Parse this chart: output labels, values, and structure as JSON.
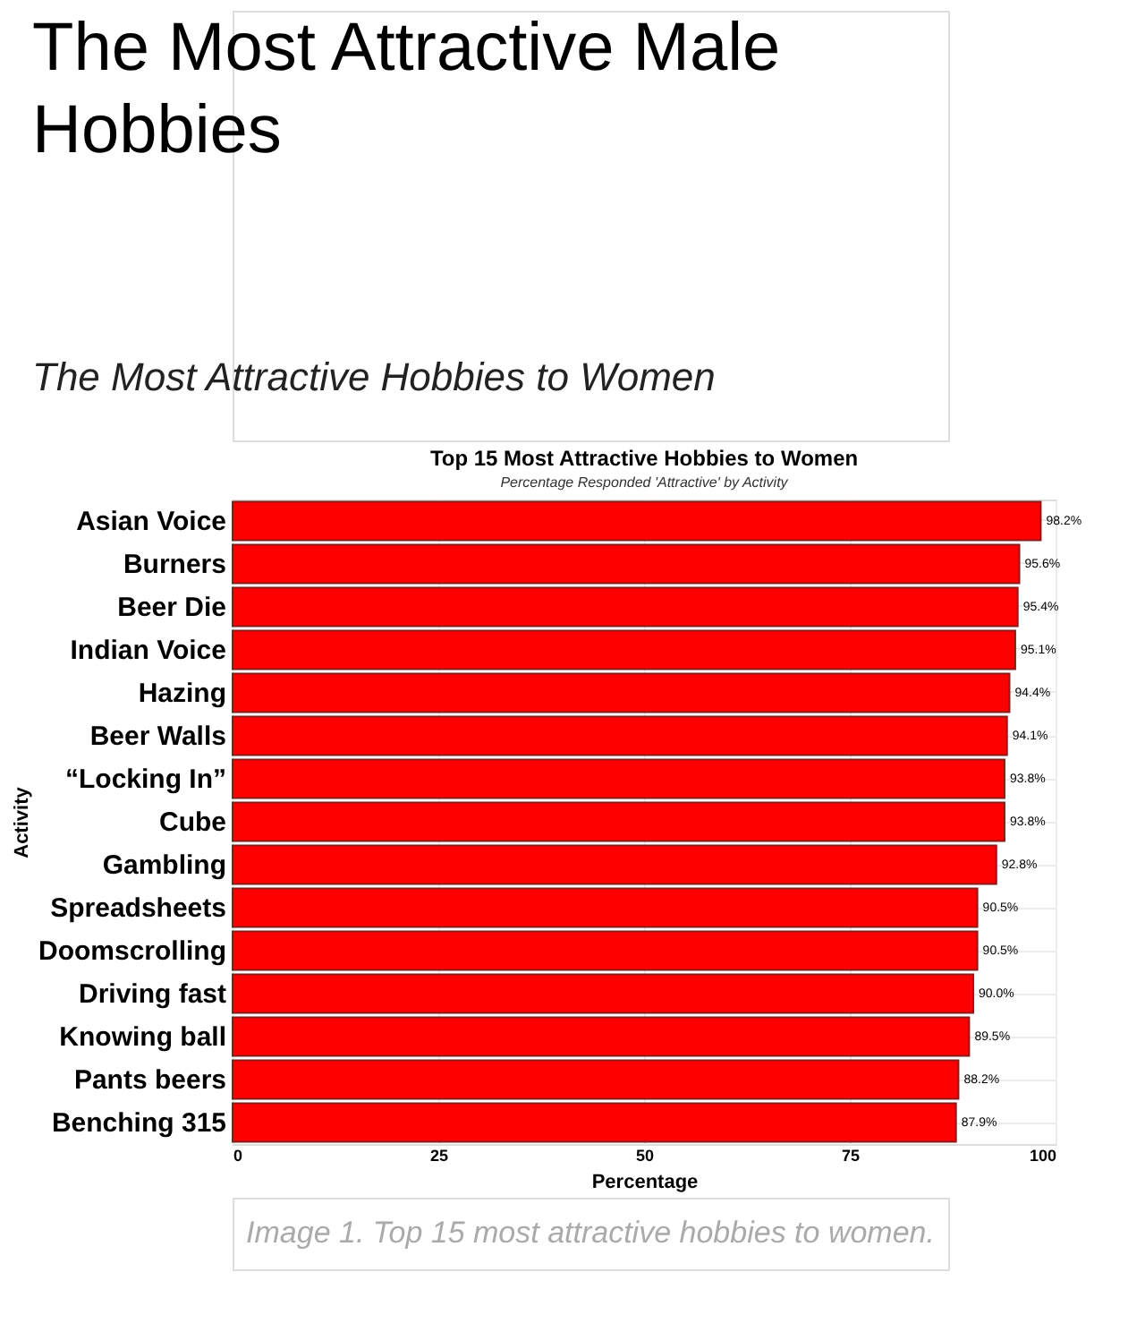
{
  "chart_data": {
    "type": "bar",
    "orientation": "horizontal",
    "title": "Top 15 Most Attractive Hobbies to Women",
    "subtitle": "Percentage Responded 'Attractive' by Activity",
    "xlabel": "Percentage",
    "ylabel": "Activity",
    "categories": [
      "Asian Voice",
      "Burners",
      "Beer Die",
      "Indian Voice",
      "Hazing",
      "Beer Walls",
      "“Locking In”",
      "Cube",
      "Gambling",
      "Spreadsheets",
      "Doomscrolling",
      "Driving fast",
      "Knowing ball",
      "Pants beers",
      "Benching 315"
    ],
    "values": [
      98.2,
      95.6,
      95.4,
      95.1,
      94.4,
      94.1,
      93.8,
      93.8,
      92.8,
      90.5,
      90.5,
      90.0,
      89.5,
      88.2,
      87.9
    ],
    "value_labels": [
      "98.2%",
      "95.6%",
      "95.4%",
      "95.1%",
      "94.4%",
      "94.1%",
      "93.8%",
      "93.8%",
      "92.8%",
      "90.5%",
      "90.5%",
      "90.0%",
      "89.5%",
      "88.2%",
      "87.9%"
    ],
    "color": "#ff0000",
    "xlim": [
      0,
      100
    ],
    "xticks": [
      0,
      25,
      50,
      75,
      100
    ],
    "grid": true,
    "annotations": [
      "The Most Attractive Male Hobbies",
      "The Most Attractive Hobbies to Women",
      "Image 1. Top 15 most attractive hobbies to women."
    ]
  }
}
